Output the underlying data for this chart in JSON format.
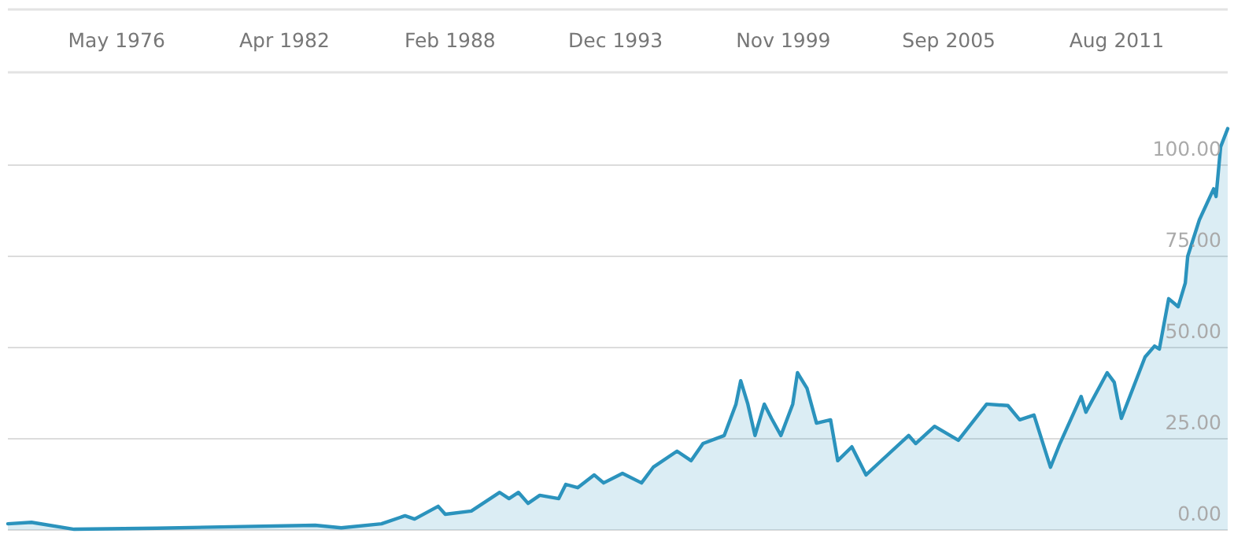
{
  "chart_data": {
    "type": "area",
    "x": [
      "1972-07",
      "1973-05",
      "1974-11",
      "1977-10",
      "1983-05",
      "1984-04",
      "1985-09",
      "1986-07",
      "1986-11",
      "1987-09",
      "1987-12",
      "1988-11",
      "1989-11",
      "1990-03",
      "1990-07",
      "1990-11",
      "1991-04",
      "1991-12",
      "1992-03",
      "1992-08",
      "1993-03",
      "1993-07",
      "1994-03",
      "1994-11",
      "1995-04",
      "1996-02",
      "1996-08",
      "1997-01",
      "1997-10",
      "1998-03",
      "1998-05",
      "1998-08",
      "1998-11",
      "1999-03",
      "1999-06",
      "1999-10",
      "2000-03",
      "2000-05",
      "2000-09",
      "2001-01",
      "2001-07",
      "2001-10",
      "2002-04",
      "2002-10",
      "2003-03",
      "2004-04",
      "2004-07",
      "2005-03",
      "2006-01",
      "2007-01",
      "2007-10",
      "2008-03",
      "2008-09",
      "2009-04",
      "2009-08",
      "2010-05",
      "2010-07",
      "2011-04",
      "2011-07",
      "2011-10",
      "2012-08",
      "2012-12",
      "2013-02",
      "2013-06",
      "2013-10",
      "2014-01",
      "2014-02",
      "2014-07",
      "2015-01",
      "2015-02",
      "2015-04",
      "2015-07"
    ],
    "series": [
      {
        "color": "#2b93bd",
        "values": [
          1.7,
          2.1,
          0.2,
          0.5,
          1.3,
          0.6,
          1.7,
          3.9,
          3.0,
          6.5,
          4.3,
          5.2,
          10.3,
          8.6,
          10.3,
          7.3,
          9.5,
          8.6,
          12.5,
          11.6,
          15.1,
          12.9,
          15.5,
          12.9,
          17.2,
          21.6,
          19,
          23.7,
          25.9,
          34.5,
          40.9,
          34.5,
          25.9,
          34.5,
          30.6,
          25.9,
          34.5,
          43.1,
          38.8,
          29.3,
          30.2,
          19,
          22.8,
          15.1,
          18.1,
          25.9,
          23.7,
          28.4,
          24.6,
          34.5,
          34.1,
          30.2,
          31.5,
          17.2,
          23.7,
          36.6,
          32.3,
          43.1,
          40.5,
          30.6,
          47.4,
          50.4,
          49.6,
          63.4,
          61.2,
          67.7,
          75,
          85,
          93.5,
          91.4,
          105,
          110
        ]
      }
    ],
    "xlim": [
      "1972-07",
      "2015-07"
    ],
    "xticks": [
      {
        "value": "1976-05",
        "label": "May 1976"
      },
      {
        "value": "1982-04",
        "label": "Apr 1982"
      },
      {
        "value": "1988-02",
        "label": "Feb 1988"
      },
      {
        "value": "1993-12",
        "label": "Dec 1993"
      },
      {
        "value": "1999-11",
        "label": "Nov 1999"
      },
      {
        "value": "2005-09",
        "label": "Sep 2005"
      },
      {
        "value": "2011-08",
        "label": "Aug 2011"
      }
    ],
    "ylim": [
      0,
      125
    ],
    "yticks": [
      {
        "value": 0,
        "label": "0.00"
      },
      {
        "value": 25,
        "label": "25.00"
      },
      {
        "value": 50,
        "label": "50.00"
      },
      {
        "value": 75,
        "label": "75.00"
      },
      {
        "value": 100,
        "label": "100.00"
      }
    ],
    "grid": "y"
  }
}
